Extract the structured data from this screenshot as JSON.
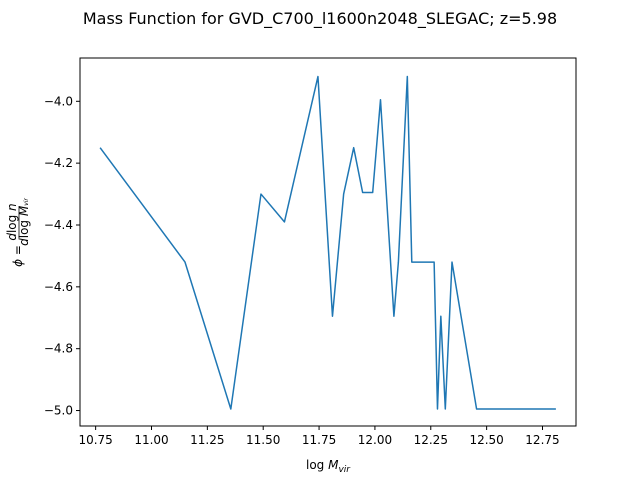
{
  "chart_data": {
    "type": "line",
    "title": "Mass Function for GVD_C700_l1600n2048_SLEGAC; z=5.98",
    "xlabel": "log M_vir",
    "ylabel": "φ = dlog n / dlog M_vir",
    "xlim": [
      10.68,
      12.9
    ],
    "ylim": [
      -5.05,
      -3.86
    ],
    "xticks": [
      10.75,
      11.0,
      11.25,
      11.5,
      11.75,
      12.0,
      12.25,
      12.5,
      12.75
    ],
    "xtick_labels": [
      "10.75",
      "11.00",
      "11.25",
      "11.50",
      "11.75",
      "12.00",
      "12.25",
      "12.50",
      "12.75"
    ],
    "yticks": [
      -4.0,
      -4.2,
      -4.4,
      -4.6,
      -4.8,
      -5.0
    ],
    "ytick_labels": [
      "−4.0",
      "−4.2",
      "−4.4",
      "−4.6",
      "−4.8",
      "−5.0"
    ],
    "grid": false,
    "series": [
      {
        "color": "#1f77b4",
        "x": [
          10.77,
          11.15,
          11.355,
          11.49,
          11.595,
          11.745,
          11.81,
          11.86,
          11.905,
          11.945,
          11.99,
          12.025,
          12.085,
          12.105,
          12.145,
          12.165,
          12.265,
          12.28,
          12.295,
          12.315,
          12.345,
          12.455,
          12.81
        ],
        "values": [
          -4.15,
          -4.52,
          -4.995,
          -4.3,
          -4.39,
          -3.92,
          -4.695,
          -4.3,
          -4.15,
          -4.295,
          -4.295,
          -3.995,
          -4.695,
          -4.52,
          -3.92,
          -4.52,
          -4.52,
          -4.995,
          -4.695,
          -4.995,
          -4.52,
          -4.995,
          -4.995
        ]
      }
    ]
  }
}
